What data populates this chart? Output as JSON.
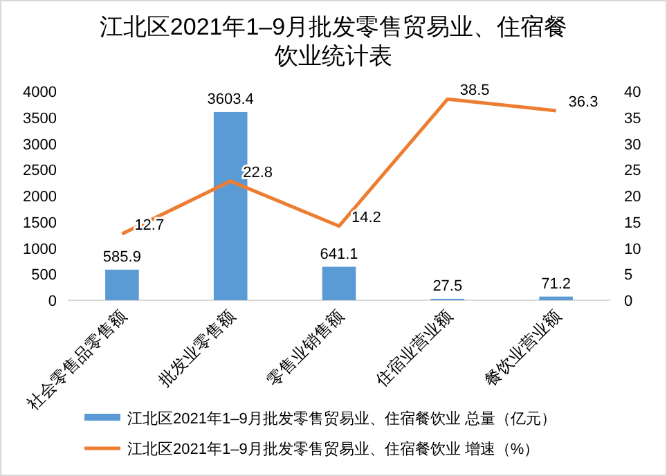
{
  "chart_data": {
    "type": "bar",
    "title": "江北区2021年1–9月批发零售贸易业、住宿餐饮业统计表",
    "categories": [
      "社会零售品零售额",
      "批发业零售额",
      "零售业销售额",
      "住宿业营业额",
      "餐饮业营业额"
    ],
    "series": [
      {
        "name": "江北区2021年1–9月批发零售贸易业、住宿餐饮业 总量（亿元）",
        "color": "#5b9bd5",
        "values": [
          585.9,
          3603.4,
          641.1,
          27.5,
          71.2
        ]
      },
      {
        "name": "江北区2021年1–9月批发零售贸易业、住宿餐饮业 增速（%）",
        "type": "line",
        "axis": "y2",
        "color": "#ed7d31",
        "values": [
          12.7,
          22.8,
          14.2,
          38.5,
          36.3
        ]
      }
    ],
    "ylim": [
      0,
      4000
    ],
    "yticks": [
      0,
      500,
      1000,
      1500,
      2000,
      2500,
      3000,
      3500,
      4000
    ],
    "y2lim": [
      0,
      40
    ],
    "y2ticks": [
      0,
      5,
      10,
      15,
      20,
      25,
      30,
      35,
      40
    ],
    "data_labels": true,
    "legend": "bottom",
    "grid": false
  }
}
